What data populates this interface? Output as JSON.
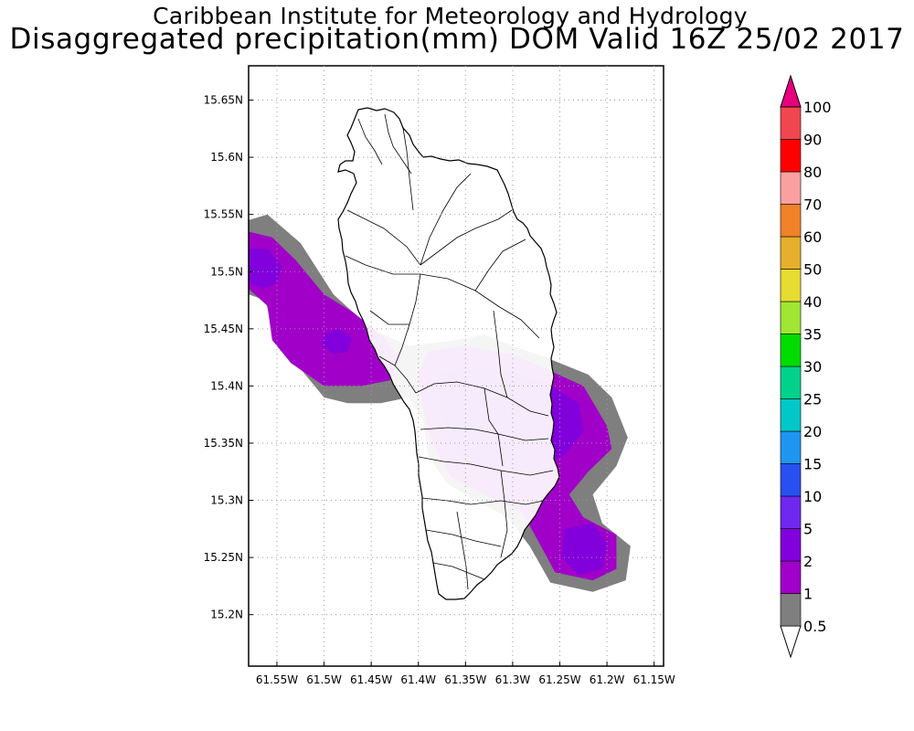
{
  "header": {
    "title": "Caribbean Institute for Meteorology and Hydrology",
    "subtitle": "Disaggregated precipitation(mm) DOM Valid 16Z 25/02 2017"
  },
  "map": {
    "region": "Dominica",
    "lon_range": [
      -61.58,
      -61.14
    ],
    "lat_range": [
      15.155,
      15.68
    ],
    "lat_ticks": [
      {
        "value": 15.65,
        "label": "15.65N"
      },
      {
        "value": 15.6,
        "label": "15.6N"
      },
      {
        "value": 15.55,
        "label": "15.55N"
      },
      {
        "value": 15.5,
        "label": "15.5N"
      },
      {
        "value": 15.45,
        "label": "15.45N"
      },
      {
        "value": 15.4,
        "label": "15.4N"
      },
      {
        "value": 15.35,
        "label": "15.35N"
      },
      {
        "value": 15.3,
        "label": "15.3N"
      },
      {
        "value": 15.25,
        "label": "15.25N"
      },
      {
        "value": 15.2,
        "label": "15.2N"
      }
    ],
    "lon_ticks": [
      {
        "value": -61.55,
        "label": "61.55W"
      },
      {
        "value": -61.5,
        "label": "61.5W"
      },
      {
        "value": -61.45,
        "label": "61.45W"
      },
      {
        "value": -61.4,
        "label": "61.4W"
      },
      {
        "value": -61.35,
        "label": "61.35W"
      },
      {
        "value": -61.3,
        "label": "61.3W"
      },
      {
        "value": -61.25,
        "label": "61.25W"
      },
      {
        "value": -61.2,
        "label": "61.2W"
      },
      {
        "value": -61.15,
        "label": "61.15W"
      }
    ],
    "grid": true,
    "grid_style": "dotted"
  },
  "legend": {
    "labels": [
      "0.5",
      "1",
      "2",
      "5",
      "10",
      "15",
      "20",
      "25",
      "30",
      "35",
      "40",
      "50",
      "60",
      "70",
      "80",
      "90",
      "100"
    ],
    "colors": [
      "#7f7f7f",
      "#a000c8",
      "#8200dc",
      "#6e28f0",
      "#2850f0",
      "#1e96f0",
      "#00c8c8",
      "#00d28c",
      "#00dc00",
      "#a0e632",
      "#e6dc32",
      "#e6af2d",
      "#f08228",
      "#faa0a0",
      "#ff0000",
      "#f04650",
      "#e6007d"
    ],
    "low_end_color": "#ffffff",
    "placement": "right"
  },
  "contours": [
    {
      "level": "0.5-1",
      "color": "#7f7f7f",
      "regions": [
        [
          [
            -61.58,
            15.545
          ],
          [
            -61.56,
            15.55
          ],
          [
            -61.525,
            15.525
          ],
          [
            -61.49,
            15.48
          ],
          [
            -61.45,
            15.45
          ],
          [
            -61.41,
            15.435
          ],
          [
            -61.36,
            15.44
          ],
          [
            -61.33,
            15.445
          ],
          [
            -61.3,
            15.435
          ],
          [
            -61.265,
            15.425
          ],
          [
            -61.22,
            15.41
          ],
          [
            -61.195,
            15.39
          ],
          [
            -61.178,
            15.355
          ],
          [
            -61.19,
            15.33
          ],
          [
            -61.215,
            15.305
          ],
          [
            -61.205,
            15.28
          ],
          [
            -61.175,
            15.26
          ],
          [
            -61.18,
            15.23
          ],
          [
            -61.215,
            15.22
          ],
          [
            -61.26,
            15.228
          ],
          [
            -61.282,
            15.26
          ],
          [
            -61.305,
            15.285
          ],
          [
            -61.34,
            15.3
          ],
          [
            -61.37,
            15.315
          ],
          [
            -61.39,
            15.34
          ],
          [
            -61.395,
            15.37
          ],
          [
            -61.41,
            15.39
          ],
          [
            -61.44,
            15.385
          ],
          [
            -61.475,
            15.385
          ],
          [
            -61.5,
            15.39
          ],
          [
            -61.54,
            15.43
          ],
          [
            -61.555,
            15.45
          ],
          [
            -61.562,
            15.475
          ],
          [
            -61.58,
            15.48
          ]
        ]
      ]
    },
    {
      "level": "1-2",
      "color": "#a000c8",
      "regions": [
        [
          [
            -61.58,
            15.535
          ],
          [
            -61.555,
            15.53
          ],
          [
            -61.53,
            15.51
          ],
          [
            -61.5,
            15.48
          ],
          [
            -61.47,
            15.465
          ],
          [
            -61.44,
            15.445
          ],
          [
            -61.42,
            15.425
          ],
          [
            -61.43,
            15.405
          ],
          [
            -61.46,
            15.4
          ],
          [
            -61.5,
            15.4
          ],
          [
            -61.535,
            15.42
          ],
          [
            -61.555,
            15.44
          ],
          [
            -61.56,
            15.47
          ],
          [
            -61.58,
            15.485
          ]
        ],
        [
          [
            -61.39,
            15.43
          ],
          [
            -61.35,
            15.435
          ],
          [
            -61.3,
            15.427
          ],
          [
            -61.265,
            15.415
          ],
          [
            -61.225,
            15.4
          ],
          [
            -61.2,
            15.365
          ],
          [
            -61.195,
            15.345
          ],
          [
            -61.22,
            15.325
          ],
          [
            -61.24,
            15.305
          ],
          [
            -61.225,
            15.285
          ],
          [
            -61.19,
            15.27
          ],
          [
            -61.19,
            15.24
          ],
          [
            -61.215,
            15.23
          ],
          [
            -61.255,
            15.237
          ],
          [
            -61.27,
            15.26
          ],
          [
            -61.29,
            15.29
          ],
          [
            -61.33,
            15.305
          ],
          [
            -61.365,
            15.32
          ],
          [
            -61.385,
            15.35
          ],
          [
            -61.395,
            15.38
          ],
          [
            -61.4,
            15.41
          ]
        ]
      ]
    },
    {
      "level": "2-5",
      "color": "#8200dc",
      "regions": [
        [
          [
            -61.58,
            15.52
          ],
          [
            -61.56,
            15.52
          ],
          [
            -61.545,
            15.505
          ],
          [
            -61.55,
            15.49
          ],
          [
            -61.565,
            15.485
          ],
          [
            -61.58,
            15.49
          ]
        ],
        [
          [
            -61.5,
            15.445
          ],
          [
            -61.485,
            15.45
          ],
          [
            -61.47,
            15.442
          ],
          [
            -61.475,
            15.43
          ],
          [
            -61.49,
            15.428
          ],
          [
            -61.502,
            15.435
          ]
        ],
        [
          [
            -61.38,
            15.41
          ],
          [
            -61.34,
            15.417
          ],
          [
            -61.3,
            15.412
          ],
          [
            -61.26,
            15.4
          ],
          [
            -61.23,
            15.385
          ],
          [
            -61.225,
            15.36
          ],
          [
            -61.245,
            15.34
          ],
          [
            -61.27,
            15.33
          ],
          [
            -61.3,
            15.325
          ],
          [
            -61.34,
            15.33
          ],
          [
            -61.365,
            15.345
          ],
          [
            -61.375,
            15.375
          ]
        ],
        [
          [
            -61.245,
            15.275
          ],
          [
            -61.215,
            15.28
          ],
          [
            -61.2,
            15.262
          ],
          [
            -61.205,
            15.24
          ],
          [
            -61.23,
            15.235
          ],
          [
            -61.248,
            15.25
          ]
        ]
      ]
    }
  ]
}
